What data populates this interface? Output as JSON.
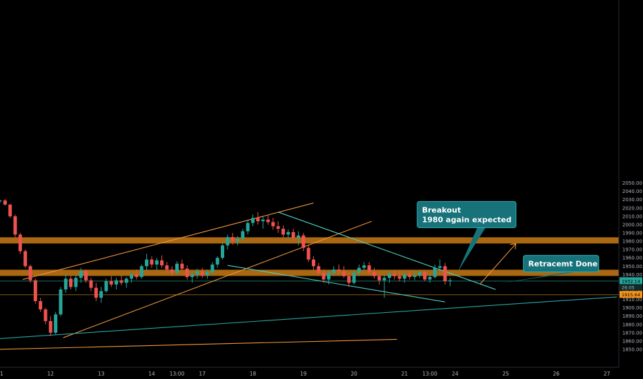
{
  "chart_data": {
    "type": "candlestick",
    "title": "",
    "xlabel": "",
    "ylabel": "",
    "ylim": [
      1845,
      2055
    ],
    "y_ticks": [
      1850,
      1860,
      1870,
      1880,
      1890,
      1900,
      1910,
      1920,
      1930,
      1940,
      1950,
      1960,
      1970,
      1980,
      1990,
      2000,
      2010,
      2020,
      2030,
      2040,
      2050
    ],
    "y_tick_labels": [
      "1850.00",
      "1860.00",
      "1870.00",
      "1880.00",
      "1890.00",
      "1900.00",
      "1910.00",
      "1920.00",
      "1930.00",
      "1940.00",
      "1950.00",
      "1960.00",
      "1970.00",
      "1980.00",
      "1990.00",
      "2000.00",
      "2010.00",
      "2020.00",
      "2030.00",
      "2040.00",
      "2050.00"
    ],
    "x_ticks": [
      {
        "label": "1",
        "t": 0
      },
      {
        "label": "12",
        "t": 1
      },
      {
        "label": "13",
        "t": 2
      },
      {
        "label": "14",
        "t": 3
      },
      {
        "label": "13:00",
        "t": 3.5
      },
      {
        "label": "17",
        "t": 4
      },
      {
        "label": "18",
        "t": 5
      },
      {
        "label": "19",
        "t": 6
      },
      {
        "label": "20",
        "t": 7
      },
      {
        "label": "21",
        "t": 8
      },
      {
        "label": "13:00",
        "t": 8.5
      },
      {
        "label": "24",
        "t": 9
      },
      {
        "label": "25",
        "t": 10
      },
      {
        "label": "26",
        "t": 11
      },
      {
        "label": "27",
        "t": 12
      }
    ],
    "xlim": [
      0,
      13
    ],
    "bull_color": "#26a69a",
    "bear_color": "#ef5350",
    "candles": [
      [
        0.0,
        2028,
        2030,
        2026,
        2029
      ],
      [
        0.1,
        2029,
        2031,
        2023,
        2024
      ],
      [
        0.2,
        2024,
        2025,
        2008,
        2010
      ],
      [
        0.3,
        2010,
        2012,
        1985,
        1988
      ],
      [
        0.4,
        1988,
        1990,
        1965,
        1968
      ],
      [
        0.5,
        1968,
        1970,
        1948,
        1950
      ],
      [
        0.6,
        1950,
        1952,
        1930,
        1933
      ],
      [
        0.7,
        1933,
        1935,
        1905,
        1908
      ],
      [
        0.8,
        1908,
        1912,
        1895,
        1898
      ],
      [
        0.9,
        1898,
        1900,
        1880,
        1884
      ],
      [
        1.0,
        1884,
        1890,
        1866,
        1870
      ],
      [
        1.1,
        1870,
        1895,
        1868,
        1892
      ],
      [
        1.2,
        1892,
        1925,
        1890,
        1922
      ],
      [
        1.3,
        1922,
        1940,
        1918,
        1935
      ],
      [
        1.4,
        1935,
        1938,
        1922,
        1925
      ],
      [
        1.5,
        1925,
        1940,
        1920,
        1936
      ],
      [
        1.6,
        1936,
        1948,
        1930,
        1944
      ],
      [
        1.7,
        1944,
        1946,
        1930,
        1933
      ],
      [
        1.8,
        1933,
        1936,
        1920,
        1924
      ],
      [
        1.9,
        1924,
        1930,
        1908,
        1912
      ],
      [
        2.0,
        1912,
        1925,
        1906,
        1920
      ],
      [
        2.1,
        1920,
        1935,
        1918,
        1932
      ],
      [
        2.2,
        1932,
        1938,
        1925,
        1928
      ],
      [
        2.3,
        1928,
        1936,
        1922,
        1933
      ],
      [
        2.4,
        1933,
        1940,
        1927,
        1930
      ],
      [
        2.5,
        1930,
        1937,
        1924,
        1935
      ],
      [
        2.6,
        1935,
        1942,
        1930,
        1940
      ],
      [
        2.7,
        1940,
        1946,
        1934,
        1937
      ],
      [
        2.8,
        1937,
        1952,
        1935,
        1950
      ],
      [
        2.9,
        1950,
        1965,
        1945,
        1958
      ],
      [
        3.0,
        1958,
        1962,
        1948,
        1952
      ],
      [
        3.1,
        1952,
        1960,
        1945,
        1957
      ],
      [
        3.2,
        1957,
        1963,
        1948,
        1951
      ],
      [
        3.3,
        1951,
        1955,
        1942,
        1946
      ],
      [
        3.4,
        1946,
        1950,
        1938,
        1942
      ],
      [
        3.5,
        1942,
        1956,
        1940,
        1953
      ],
      [
        3.6,
        1953,
        1958,
        1944,
        1947
      ],
      [
        3.7,
        1947,
        1951,
        1934,
        1937
      ],
      [
        3.8,
        1937,
        1944,
        1930,
        1940
      ],
      [
        3.9,
        1940,
        1947,
        1935,
        1944
      ],
      [
        4.0,
        1944,
        1948,
        1936,
        1939
      ],
      [
        4.1,
        1939,
        1946,
        1935,
        1943
      ],
      [
        4.2,
        1943,
        1955,
        1940,
        1952
      ],
      [
        4.3,
        1952,
        1962,
        1948,
        1960
      ],
      [
        4.4,
        1960,
        1978,
        1958,
        1975
      ],
      [
        4.5,
        1975,
        1988,
        1970,
        1985
      ],
      [
        4.6,
        1985,
        1990,
        1976,
        1980
      ],
      [
        4.7,
        1980,
        1986,
        1975,
        1983
      ],
      [
        4.8,
        1983,
        1995,
        1980,
        1992
      ],
      [
        4.9,
        1992,
        2005,
        1988,
        2002
      ],
      [
        5.0,
        2002,
        2012,
        1998,
        2008
      ],
      [
        5.1,
        2008,
        2015,
        2000,
        2004
      ],
      [
        5.2,
        2004,
        2010,
        1995,
        2006
      ],
      [
        5.3,
        2006,
        2012,
        2000,
        2003
      ],
      [
        5.4,
        2003,
        2008,
        1994,
        1998
      ],
      [
        5.5,
        1998,
        2004,
        1990,
        1995
      ],
      [
        5.6,
        1995,
        1999,
        1985,
        1988
      ],
      [
        5.7,
        1988,
        1994,
        1982,
        1991
      ],
      [
        5.8,
        1991,
        1995,
        1980,
        1984
      ],
      [
        5.9,
        1984,
        1992,
        1975,
        1987
      ],
      [
        6.0,
        1987,
        1990,
        1968,
        1972
      ],
      [
        6.1,
        1972,
        1975,
        1955,
        1958
      ],
      [
        6.2,
        1958,
        1962,
        1945,
        1950
      ],
      [
        6.3,
        1950,
        1954,
        1938,
        1942
      ],
      [
        6.4,
        1942,
        1946,
        1930,
        1934
      ],
      [
        6.5,
        1934,
        1945,
        1928,
        1942
      ],
      [
        6.6,
        1942,
        1950,
        1938,
        1946
      ],
      [
        6.7,
        1946,
        1952,
        1940,
        1944
      ],
      [
        6.8,
        1944,
        1950,
        1936,
        1938
      ],
      [
        6.9,
        1938,
        1942,
        1925,
        1930
      ],
      [
        7.0,
        1930,
        1945,
        1928,
        1942
      ],
      [
        7.1,
        1942,
        1952,
        1938,
        1948
      ],
      [
        7.2,
        1948,
        1955,
        1944,
        1951
      ],
      [
        7.3,
        1951,
        1955,
        1940,
        1943
      ],
      [
        7.4,
        1943,
        1948,
        1935,
        1938
      ],
      [
        7.5,
        1938,
        1942,
        1928,
        1933
      ],
      [
        7.6,
        1933,
        1940,
        1912,
        1936
      ],
      [
        7.7,
        1936,
        1945,
        1930,
        1941
      ],
      [
        7.8,
        1941,
        1945,
        1934,
        1938
      ],
      [
        7.9,
        1938,
        1944,
        1932,
        1935
      ],
      [
        8.0,
        1935,
        1942,
        1930,
        1940
      ],
      [
        8.1,
        1940,
        1945,
        1934,
        1937
      ],
      [
        8.2,
        1937,
        1944,
        1933,
        1939
      ],
      [
        8.3,
        1939,
        1945,
        1936,
        1943
      ],
      [
        8.4,
        1943,
        1945,
        1932,
        1934
      ],
      [
        8.5,
        1934,
        1940,
        1930,
        1937
      ],
      [
        8.6,
        1937,
        1952,
        1935,
        1948
      ],
      [
        8.7,
        1948,
        1958,
        1944,
        1950
      ],
      [
        8.8,
        1950,
        1954,
        1928,
        1932
      ],
      [
        8.9,
        1932,
        1936,
        1926,
        1933
      ]
    ],
    "horizontal_zones": [
      {
        "price": 1981,
        "color": "#c77a14"
      },
      {
        "price": 1942,
        "color": "#c77a14"
      }
    ],
    "horizontal_lines": [
      {
        "price": 1932.14,
        "color": "#1f6b60"
      },
      {
        "price": 1915.64,
        "color": "#8a5a12"
      }
    ],
    "trend_lines": [
      {
        "color": "#f2963d",
        "t1": 0.45,
        "p1": 1934,
        "t2": 6.2,
        "p2": 2026
      },
      {
        "color": "#f2963d",
        "t1": 1.25,
        "p1": 1864,
        "t2": 7.35,
        "p2": 2004
      },
      {
        "color": "#f2963d",
        "t1": 0.0,
        "p1": 1850,
        "t2": 7.85,
        "p2": 1862
      },
      {
        "color": "#f2963d",
        "t1": 9.5,
        "p1": 1929,
        "t2": 10.2,
        "p2": 1977
      },
      {
        "color": "#4fd1c5",
        "t1": 5.5,
        "p1": 2015,
        "t2": 9.8,
        "p2": 1922
      },
      {
        "color": "#4fd1c5",
        "t1": 4.5,
        "p1": 1951,
        "t2": 8.8,
        "p2": 1907
      },
      {
        "color": "#2aa6a6",
        "t1": 0.0,
        "p1": 1863,
        "t2": 12.2,
        "p2": 1913
      }
    ],
    "annotations": [
      {
        "lines": [
          "Breakout",
          "1980 again expected"
        ],
        "t": 8.25,
        "price": 2012,
        "tail_t": 9.05,
        "tail_p": 1943
      },
      {
        "lines": [
          "Retracemt Done"
        ],
        "t": 10.35,
        "price": 1953,
        "tail_t": 9.85,
        "tail_p": 1929
      }
    ],
    "price_badges": [
      {
        "price": 1932.14,
        "label": "1932.14",
        "sub": "26:05",
        "color": "#26a69a"
      },
      {
        "price": 1915.64,
        "label": "1915.64",
        "sub": "",
        "color": "#f7931a"
      }
    ]
  }
}
